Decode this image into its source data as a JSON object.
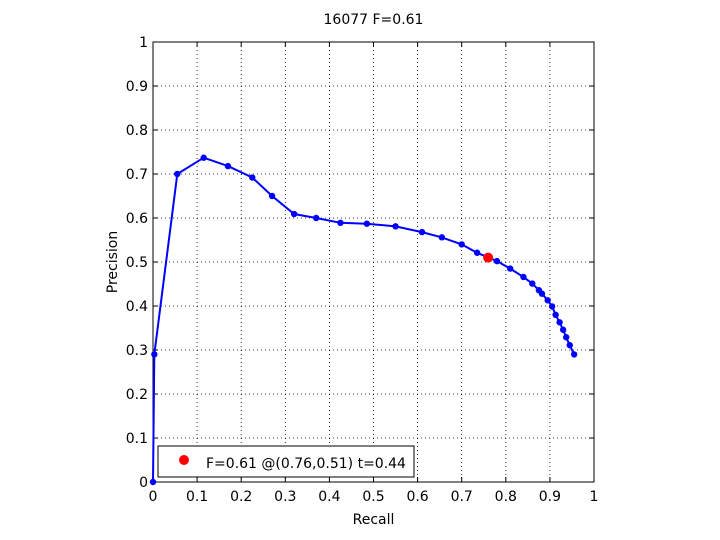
{
  "chart_data": {
    "type": "line",
    "title": "16077 F=0.61",
    "xlabel": "Recall",
    "ylabel": "Precision",
    "xlim": [
      0,
      1
    ],
    "ylim": [
      0,
      1
    ],
    "grid": true,
    "x_ticks": [
      "0",
      "0.1",
      "0.2",
      "0.3",
      "0.4",
      "0.5",
      "0.6",
      "0.7",
      "0.8",
      "0.9",
      "1"
    ],
    "y_ticks": [
      "0",
      "0.1",
      "0.2",
      "0.3",
      "0.4",
      "0.5",
      "0.6",
      "0.7",
      "0.8",
      "0.9",
      "1"
    ],
    "series": [
      {
        "color": "#0000ff",
        "marker": "dot",
        "points": [
          [
            0.0,
            0.0
          ],
          [
            0.003,
            0.29
          ],
          [
            0.055,
            0.7
          ],
          [
            0.115,
            0.737
          ],
          [
            0.17,
            0.718
          ],
          [
            0.225,
            0.692
          ],
          [
            0.27,
            0.65
          ],
          [
            0.32,
            0.609
          ],
          [
            0.37,
            0.6
          ],
          [
            0.425,
            0.589
          ],
          [
            0.485,
            0.587
          ],
          [
            0.55,
            0.581
          ],
          [
            0.61,
            0.568
          ],
          [
            0.655,
            0.556
          ],
          [
            0.7,
            0.54
          ],
          [
            0.735,
            0.521
          ],
          [
            0.78,
            0.502
          ],
          [
            0.81,
            0.485
          ],
          [
            0.84,
            0.466
          ],
          [
            0.86,
            0.451
          ],
          [
            0.875,
            0.436
          ],
          [
            0.882,
            0.428
          ],
          [
            0.895,
            0.413
          ],
          [
            0.905,
            0.399
          ],
          [
            0.913,
            0.38
          ],
          [
            0.922,
            0.363
          ],
          [
            0.93,
            0.346
          ],
          [
            0.937,
            0.329
          ],
          [
            0.945,
            0.311
          ],
          [
            0.955,
            0.29
          ]
        ]
      }
    ],
    "highlight": {
      "x": 0.76,
      "y": 0.51,
      "color": "#ff0000"
    },
    "legend": {
      "placement": "bottom-left",
      "label": "F=0.61 @(0.76,0.51) t=0.44",
      "marker_color": "#ff0000"
    }
  }
}
